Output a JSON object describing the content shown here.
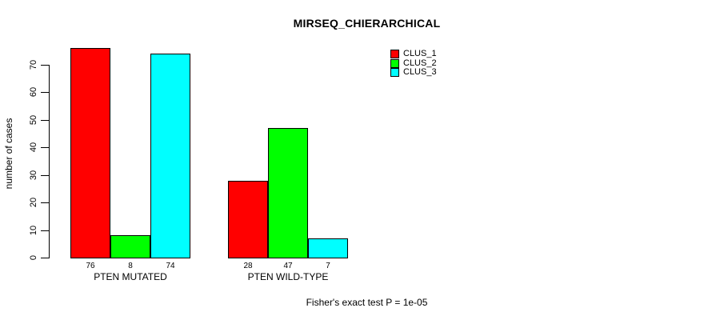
{
  "chart_data": {
    "type": "bar",
    "title": "MIRSEQ_CHIERARCHICAL",
    "ylabel": "number of cases",
    "xlabel": "",
    "categories": [
      "PTEN MUTATED",
      "PTEN WILD-TYPE"
    ],
    "series": [
      {
        "name": "CLUS_1",
        "color": "#ff0000",
        "values": [
          76,
          28
        ]
      },
      {
        "name": "CLUS_2",
        "color": "#00ff00",
        "values": [
          8,
          47
        ]
      },
      {
        "name": "CLUS_3",
        "color": "#00ffff",
        "values": [
          74,
          7
        ]
      }
    ],
    "yticks": [
      0,
      10,
      20,
      30,
      40,
      50,
      60,
      70
    ],
    "ylim": [
      0,
      76
    ],
    "grid": false,
    "legend_position": "top-right",
    "value_labels_under_bars": true,
    "footnote": "Fisher's exact test P = 1e-05"
  }
}
